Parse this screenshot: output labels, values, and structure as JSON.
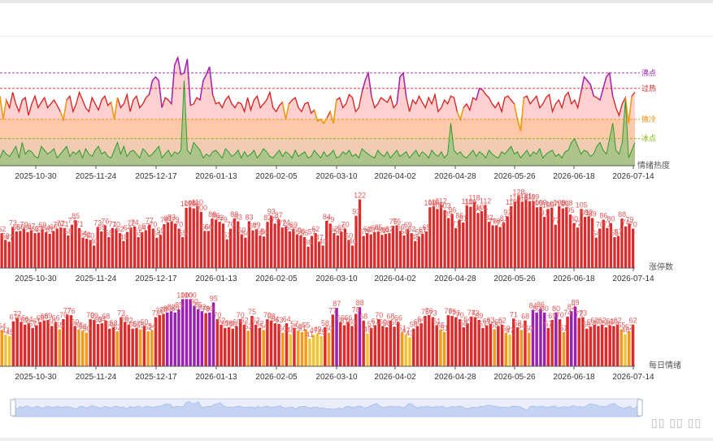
{
  "chart_data": [
    {
      "type": "area",
      "y_axis_name": "情绪热度",
      "x_tick_labels": [
        "2025-10-30",
        "2025-11-24",
        "2025-12-17",
        "2026-01-13",
        "2026-02-05",
        "2026-03-10",
        "2026-04-02",
        "2026-04-28",
        "2026-05-26",
        "2026-06-18",
        "2026-07-14"
      ],
      "thresholds": [
        {
          "name": "沸点",
          "color": "#9b1fb4",
          "value": 120
        },
        {
          "name": "过热",
          "color": "#d42020",
          "value": 100
        },
        {
          "name": "微冷",
          "color": "#e68a00",
          "value": 60
        },
        {
          "name": "冰点",
          "color": "#7ab800",
          "value": 35
        }
      ],
      "series": [
        {
          "values": [
            90,
            60,
            85,
            75,
            95,
            80,
            70,
            85,
            88,
            65,
            80,
            90,
            75,
            82,
            88,
            75,
            80,
            85,
            78,
            70,
            60,
            85,
            90,
            70,
            80,
            95,
            85,
            75,
            70,
            88,
            80,
            72,
            85,
            90,
            78,
            82,
            60,
            88,
            75,
            80,
            92,
            70,
            85,
            90,
            75,
            80,
            88,
            92,
            110,
            115,
            110,
            75,
            88,
            85,
            80,
            130,
            140,
            118,
            120,
            138,
            78,
            80,
            88,
            85,
            110,
            118,
            128,
            92,
            80,
            82,
            75,
            85,
            90,
            80,
            75,
            82,
            80,
            70,
            88,
            72,
            85,
            90,
            75,
            80,
            85,
            95,
            75,
            70,
            78,
            82,
            60,
            80,
            85,
            88,
            75,
            70,
            80,
            82,
            68,
            72,
            58,
            60,
            55,
            62,
            70,
            55,
            85,
            88,
            75,
            80,
            92,
            88,
            70,
            75,
            95,
            110,
            120,
            90,
            75,
            80,
            88,
            85,
            82,
            90,
            75,
            80,
            115,
            120,
            88,
            70,
            85,
            80,
            90,
            82,
            75,
            88,
            80,
            92,
            70,
            75,
            85,
            80,
            90,
            88,
            70,
            60,
            75,
            80,
            72,
            88,
            85,
            100,
            98,
            92,
            88,
            80,
            75,
            82,
            70,
            88,
            90,
            85,
            80,
            60,
            45,
            88,
            90,
            80,
            85,
            90,
            75,
            80,
            88,
            92,
            70,
            80,
            85,
            75,
            90,
            95,
            80,
            85,
            75,
            95,
            115,
            110,
            105,
            90,
            88,
            85,
            100,
            115,
            120,
            90,
            75,
            65,
            80,
            88,
            55,
            90,
            95
          ]
        },
        {
          "values": [
            10,
            20,
            15,
            12,
            18,
            25,
            10,
            30,
            15,
            20,
            18,
            12,
            10,
            25,
            20,
            15,
            18,
            22,
            10,
            15,
            20,
            25,
            12,
            18,
            15,
            20,
            10,
            22,
            15,
            12,
            20,
            25,
            15,
            18,
            12,
            10,
            20,
            30,
            15,
            25,
            12,
            18,
            20,
            15,
            10,
            22,
            18,
            12,
            15,
            20,
            25,
            10,
            15,
            20,
            12,
            18,
            15,
            20,
            110,
            20,
            15,
            30,
            25,
            20,
            10,
            15,
            12,
            18,
            20,
            15,
            10,
            22,
            18,
            12,
            15,
            20,
            10,
            18,
            12,
            15,
            20,
            10,
            15,
            22,
            18,
            12,
            10,
            15,
            20,
            12,
            18,
            15,
            10,
            20,
            12,
            15,
            18,
            10,
            12,
            20,
            15,
            10,
            18,
            12,
            15,
            20,
            10,
            12,
            18,
            15,
            20,
            12,
            15,
            10,
            22,
            18,
            15,
            12,
            10,
            20,
            15,
            12,
            18,
            10,
            15,
            20,
            12,
            15,
            18,
            10,
            15,
            20,
            12,
            18,
            15,
            10,
            20,
            15,
            12,
            18,
            10,
            15,
            55,
            20,
            15,
            18,
            12,
            10,
            15,
            20,
            12,
            18,
            15,
            10,
            20,
            15,
            12,
            10,
            18,
            15,
            20,
            25,
            15,
            18,
            10,
            15,
            20,
            12,
            18,
            15,
            22,
            10,
            15,
            18,
            20,
            12,
            15,
            10,
            18,
            20,
            30,
            35,
            25,
            15,
            20,
            18,
            12,
            15,
            25,
            30,
            20,
            15,
            35,
            55,
            20,
            15,
            30,
            85,
            10,
            20,
            30
          ]
        }
      ]
    },
    {
      "type": "bar",
      "y_axis_name": "涨停数",
      "x_tick_labels": [
        "2025-10-30",
        "2025-11-24",
        "2025-12-17",
        "2026-01-13",
        "2026-02-05",
        "2026-03-10",
        "2026-04-02",
        "2026-04-28",
        "2026-05-26",
        "2026-06-18",
        "2026-07-14"
      ],
      "values": [
        62,
        50,
        47,
        73,
        65,
        66,
        70,
        64,
        67,
        62,
        63,
        69,
        64,
        61,
        66,
        70,
        72,
        71,
        58,
        77,
        85,
        71,
        54,
        52,
        50,
        40,
        73,
        65,
        76,
        55,
        71,
        70,
        62,
        48,
        64,
        72,
        74,
        55,
        64,
        67,
        77,
        70,
        54,
        59,
        78,
        81,
        83,
        79,
        70,
        55,
        107,
        108,
        106,
        110,
        100,
        66,
        66,
        88,
        86,
        82,
        79,
        51,
        70,
        88,
        83,
        60,
        54,
        83,
        67,
        69,
        58,
        56,
        82,
        93,
        79,
        87,
        72,
        74,
        65,
        69,
        60,
        58,
        55,
        38,
        57,
        62,
        47,
        40,
        84,
        79,
        62,
        58,
        65,
        70,
        50,
        40,
        93,
        122,
        57,
        62,
        60,
        64,
        65,
        59,
        61,
        62,
        75,
        76,
        66,
        58,
        69,
        62,
        48,
        56,
        61,
        65,
        108,
        110,
        105,
        112,
        103,
        89,
        96,
        71,
        86,
        81,
        111,
        109,
        118,
        98,
        101,
        112,
        82,
        76,
        76,
        73,
        81,
        92,
        110,
        118,
        128,
        118,
        121,
        119,
        119,
        108,
        109,
        91,
        105,
        107,
        77,
        109,
        106,
        108,
        95,
        80,
        72,
        105,
        91,
        92,
        89,
        54,
        70,
        86,
        71,
        80,
        55,
        57,
        88,
        74,
        79,
        70
      ]
    },
    {
      "type": "bar",
      "y_axis_name": "每日情绪",
      "x_tick_labels": [
        "2025-10-30",
        "2025-11-24",
        "2025-12-17",
        "2026-01-13",
        "2026-02-05",
        "2026-03-10",
        "2026-04-02",
        "2026-04-28",
        "2026-05-26",
        "2026-06-18",
        "2026-07-14"
      ],
      "values": [
        54,
        47,
        45,
        67,
        72,
        66,
        62,
        64,
        57,
        61,
        66,
        68,
        69,
        60,
        66,
        55,
        70,
        77,
        76,
        60,
        55,
        53,
        50,
        70,
        69,
        63,
        64,
        68,
        56,
        58,
        52,
        73,
        66,
        62,
        56,
        57,
        55,
        60,
        52,
        54,
        73,
        76,
        78,
        80,
        82,
        80,
        85,
        100,
        100,
        100,
        90,
        85,
        82,
        79,
        80,
        95,
        70,
        62,
        57,
        58,
        56,
        60,
        70,
        62,
        53,
        75,
        62,
        57,
        54,
        70,
        68,
        64,
        63,
        50,
        64,
        48,
        57,
        53,
        51,
        55,
        41,
        47,
        49,
        45,
        58,
        50,
        77,
        87,
        66,
        61,
        66,
        60,
        78,
        88,
        68,
        49,
        57,
        61,
        70,
        60,
        58,
        68,
        59,
        66,
        51,
        47,
        43,
        56,
        60,
        64,
        75,
        76,
        73,
        61,
        55,
        51,
        76,
        75,
        73,
        70,
        58,
        64,
        74,
        73,
        69,
        57,
        61,
        63,
        55,
        60,
        62,
        50,
        47,
        71,
        58,
        54,
        68,
        50,
        84,
        80,
        86,
        80,
        57,
        69,
        80,
        70,
        51,
        74,
        82,
        89,
        72,
        73,
        56,
        59,
        62,
        60,
        62,
        58,
        61,
        60,
        62,
        55,
        48,
        52,
        62
      ]
    }
  ]
}
